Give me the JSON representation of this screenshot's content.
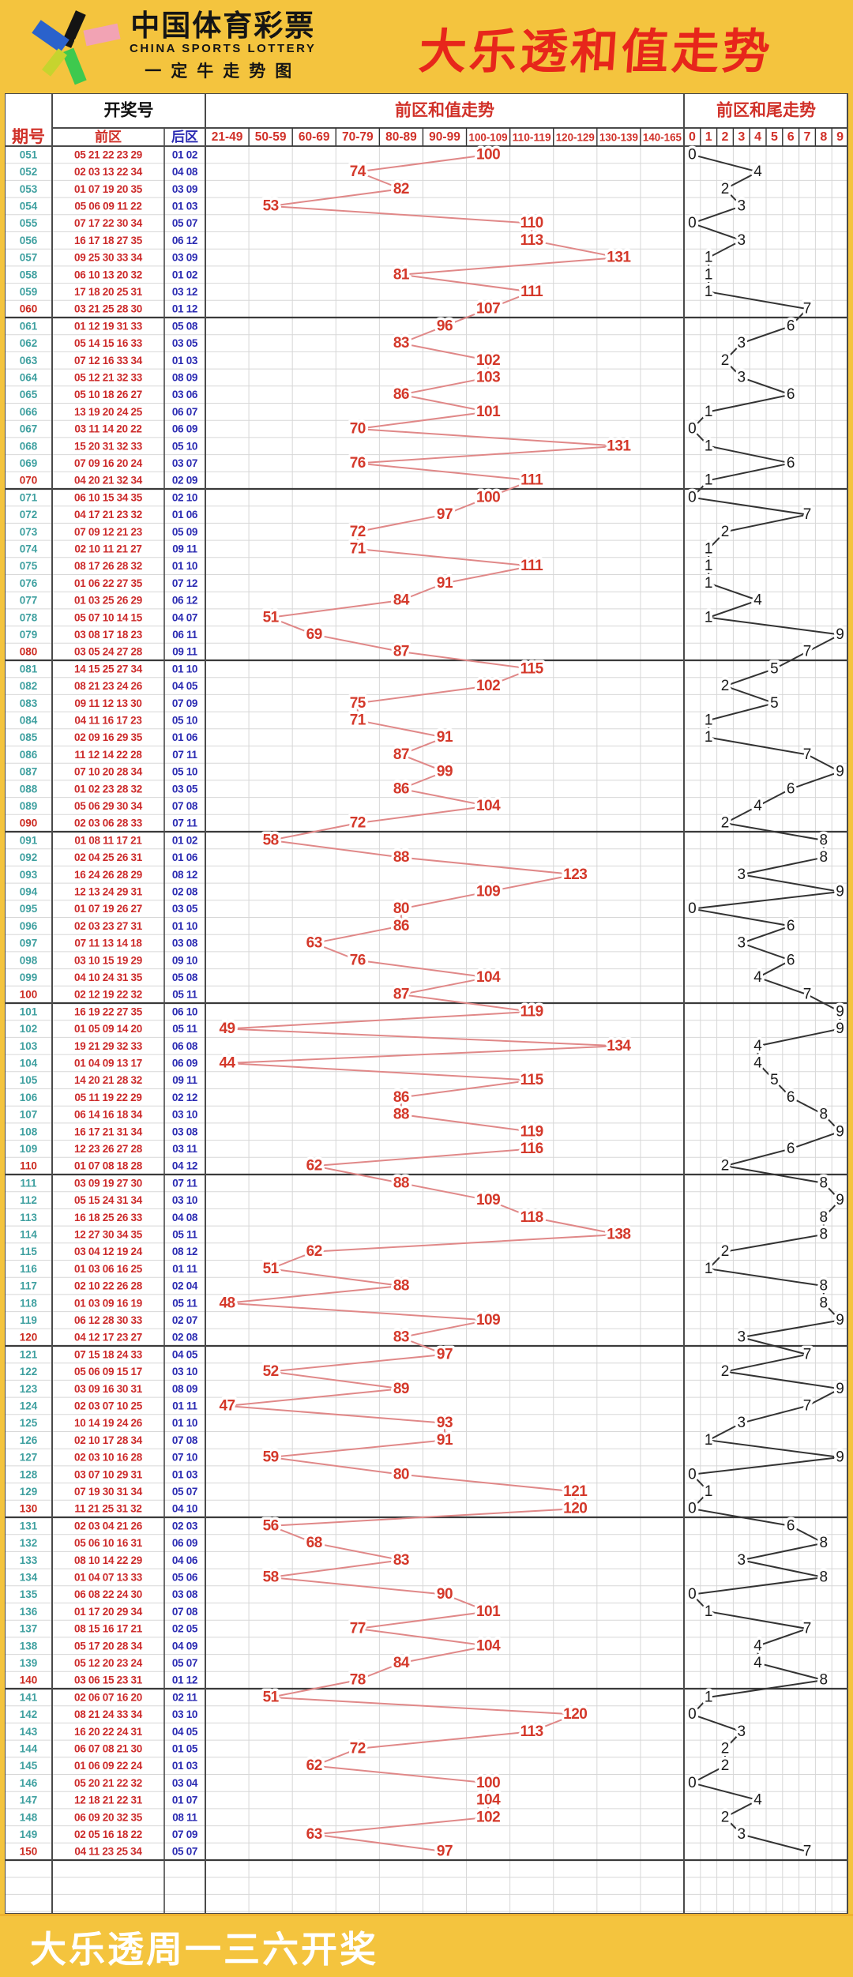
{
  "header": {
    "logo_title": "中国体育彩票",
    "logo_subtitle": "CHINA SPORTS LOTTERY",
    "logo_tagline": "一定牛走势图",
    "page_title": "大乐透和值走势"
  },
  "footer": {
    "text": "大乐透周一三六开奖"
  },
  "table_labels": {
    "period": "期号",
    "draw_number": "开奖号",
    "front_zone": "前区",
    "back_zone": "后区",
    "sum_trend": "前区和值走势",
    "tail_trend": "前区和尾走势"
  },
  "colors": {
    "page_yellow": "#f4c43e",
    "title_red": "#e7261b",
    "header_red": "#d03028",
    "period_teal": "#3fa0a0",
    "period_red": "#cc2a20",
    "front_red": "#cc2a2a",
    "back_blue": "#2a2ab2",
    "sum_text": "#d4382a",
    "sum_line": "#e08888",
    "tail_text": "#1b1b1b",
    "tail_line": "#333333",
    "grid_light": "#d7d7d7",
    "grid_dark": "#4a4a4a",
    "footer_text": "#ffffff"
  },
  "chart_data": {
    "type": "table",
    "description": "Lottery sum-value trend: each row plots front-zone sum into its range bin (red line) and sum tail digit 0-9 (black line)",
    "sum_bins": [
      "21-49",
      "50-59",
      "60-69",
      "70-79",
      "80-89",
      "90-99",
      "100-109",
      "110-119",
      "120-129",
      "130-139",
      "140-165"
    ],
    "tail_bins": [
      "0",
      "1",
      "2",
      "3",
      "4",
      "5",
      "6",
      "7",
      "8",
      "9"
    ],
    "row_format": [
      "period",
      "front",
      "back",
      "sum",
      "sum_tail"
    ],
    "rows": [
      [
        "051",
        "05 21 22 23 29",
        "01 02",
        100,
        0
      ],
      [
        "052",
        "02 03 13 22 34",
        "04 08",
        74,
        4
      ],
      [
        "053",
        "01 07 19 20 35",
        "03 09",
        82,
        2
      ],
      [
        "054",
        "05 06 09 11 22",
        "01 03",
        53,
        3
      ],
      [
        "055",
        "07 17 22 30 34",
        "05 07",
        110,
        0
      ],
      [
        "056",
        "16 17 18 27 35",
        "06 12",
        113,
        3
      ],
      [
        "057",
        "09 25 30 33 34",
        "03 09",
        131,
        1
      ],
      [
        "058",
        "06 10 13 20 32",
        "01 02",
        81,
        1
      ],
      [
        "059",
        "17 18 20 25 31",
        "03 12",
        111,
        1
      ],
      [
        "060",
        "03 21 25 28 30",
        "01 12",
        107,
        7
      ],
      [
        "061",
        "01 12 19 31 33",
        "05 08",
        96,
        6
      ],
      [
        "062",
        "05 14 15 16 33",
        "03 05",
        83,
        3
      ],
      [
        "063",
        "07 12 16 33 34",
        "01 03",
        102,
        2
      ],
      [
        "064",
        "05 12 21 32 33",
        "08 09",
        103,
        3
      ],
      [
        "065",
        "05 10 18 26 27",
        "03 06",
        86,
        6
      ],
      [
        "066",
        "13 19 20 24 25",
        "06 07",
        101,
        1
      ],
      [
        "067",
        "03 11 14 20 22",
        "06 09",
        70,
        0
      ],
      [
        "068",
        "15 20 31 32 33",
        "05 10",
        131,
        1
      ],
      [
        "069",
        "07 09 16 20 24",
        "03 07",
        76,
        6
      ],
      [
        "070",
        "04 20 21 32 34",
        "02 09",
        111,
        1
      ],
      [
        "071",
        "06 10 15 34 35",
        "02 10",
        100,
        0
      ],
      [
        "072",
        "04 17 21 23 32",
        "01 06",
        97,
        7
      ],
      [
        "073",
        "07 09 12 21 23",
        "05 09",
        72,
        2
      ],
      [
        "074",
        "02 10 11 21 27",
        "09 11",
        71,
        1
      ],
      [
        "075",
        "08 17 26 28 32",
        "01 10",
        111,
        1
      ],
      [
        "076",
        "01 06 22 27 35",
        "07 12",
        91,
        1
      ],
      [
        "077",
        "01 03 25 26 29",
        "06 12",
        84,
        4
      ],
      [
        "078",
        "05 07 10 14 15",
        "04 07",
        51,
        1
      ],
      [
        "079",
        "03 08 17 18 23",
        "06 11",
        69,
        9
      ],
      [
        "080",
        "03 05 24 27 28",
        "09 11",
        87,
        7
      ],
      [
        "081",
        "14 15 25 27 34",
        "01 10",
        115,
        5
      ],
      [
        "082",
        "08 21 23 24 26",
        "04 05",
        102,
        2
      ],
      [
        "083",
        "09 11 12 13 30",
        "07 09",
        75,
        5
      ],
      [
        "084",
        "04 11 16 17 23",
        "05 10",
        71,
        1
      ],
      [
        "085",
        "02 09 16 29 35",
        "01 06",
        91,
        1
      ],
      [
        "086",
        "11 12 14 22 28",
        "07 11",
        87,
        7
      ],
      [
        "087",
        "07 10 20 28 34",
        "05 10",
        99,
        9
      ],
      [
        "088",
        "01 02 23 28 32",
        "03 05",
        86,
        6
      ],
      [
        "089",
        "05 06 29 30 34",
        "07 08",
        104,
        4
      ],
      [
        "090",
        "02 03 06 28 33",
        "07 11",
        72,
        2
      ],
      [
        "091",
        "01 08 11 17 21",
        "01 02",
        58,
        8
      ],
      [
        "092",
        "02 04 25 26 31",
        "01 06",
        88,
        8
      ],
      [
        "093",
        "16 24 26 28 29",
        "08 12",
        123,
        3
      ],
      [
        "094",
        "12 13 24 29 31",
        "02 08",
        109,
        9
      ],
      [
        "095",
        "01 07 19 26 27",
        "03 05",
        80,
        0
      ],
      [
        "096",
        "02 03 23 27 31",
        "01 10",
        86,
        6
      ],
      [
        "097",
        "07 11 13 14 18",
        "03 08",
        63,
        3
      ],
      [
        "098",
        "03 10 15 19 29",
        "09 10",
        76,
        6
      ],
      [
        "099",
        "04 10 24 31 35",
        "05 08",
        104,
        4
      ],
      [
        "100",
        "02 12 19 22 32",
        "05 11",
        87,
        7
      ],
      [
        "101",
        "16 19 22 27 35",
        "06 10",
        119,
        9
      ],
      [
        "102",
        "01 05 09 14 20",
        "05 11",
        49,
        9
      ],
      [
        "103",
        "19 21 29 32 33",
        "06 08",
        134,
        4
      ],
      [
        "104",
        "01 04 09 13 17",
        "06 09",
        44,
        4
      ],
      [
        "105",
        "14 20 21 28 32",
        "09 11",
        115,
        5
      ],
      [
        "106",
        "05 11 19 22 29",
        "02 12",
        86,
        6
      ],
      [
        "107",
        "06 14 16 18 34",
        "03 10",
        88,
        8
      ],
      [
        "108",
        "16 17 21 31 34",
        "03 08",
        119,
        9
      ],
      [
        "109",
        "12 23 26 27 28",
        "03 11",
        116,
        6
      ],
      [
        "110",
        "01 07 08 18 28",
        "04 12",
        62,
        2
      ],
      [
        "111",
        "03 09 19 27 30",
        "07 11",
        88,
        8
      ],
      [
        "112",
        "05 15 24 31 34",
        "03 10",
        109,
        9
      ],
      [
        "113",
        "16 18 25 26 33",
        "04 08",
        118,
        8
      ],
      [
        "114",
        "12 27 30 34 35",
        "05 11",
        138,
        8
      ],
      [
        "115",
        "03 04 12 19 24",
        "08 12",
        62,
        2
      ],
      [
        "116",
        "01 03 06 16 25",
        "01 11",
        51,
        1
      ],
      [
        "117",
        "02 10 22 26 28",
        "02 04",
        88,
        8
      ],
      [
        "118",
        "01 03 09 16 19",
        "05 11",
        48,
        8
      ],
      [
        "119",
        "06 12 28 30 33",
        "02 07",
        109,
        9
      ],
      [
        "120",
        "04 12 17 23 27",
        "02 08",
        83,
        3
      ],
      [
        "121",
        "07 15 18 24 33",
        "04 05",
        97,
        7
      ],
      [
        "122",
        "05 06 09 15 17",
        "03 10",
        52,
        2
      ],
      [
        "123",
        "03 09 16 30 31",
        "08 09",
        89,
        9
      ],
      [
        "124",
        "02 03 07 10 25",
        "01 11",
        47,
        7
      ],
      [
        "125",
        "10 14 19 24 26",
        "01 10",
        93,
        3
      ],
      [
        "126",
        "02 10 17 28 34",
        "07 08",
        91,
        1
      ],
      [
        "127",
        "02 03 10 16 28",
        "07 10",
        59,
        9
      ],
      [
        "128",
        "03 07 10 29 31",
        "01 03",
        80,
        0
      ],
      [
        "129",
        "07 19 30 31 34",
        "05 07",
        121,
        1
      ],
      [
        "130",
        "11 21 25 31 32",
        "04 10",
        120,
        0
      ],
      [
        "131",
        "02 03 04 21 26",
        "02 03",
        56,
        6
      ],
      [
        "132",
        "05 06 10 16 31",
        "06 09",
        68,
        8
      ],
      [
        "133",
        "08 10 14 22 29",
        "04 06",
        83,
        3
      ],
      [
        "134",
        "01 04 07 13 33",
        "05 06",
        58,
        8
      ],
      [
        "135",
        "06 08 22 24 30",
        "03 08",
        90,
        0
      ],
      [
        "136",
        "01 17 20 29 34",
        "07 08",
        101,
        1
      ],
      [
        "137",
        "08 15 16 17 21",
        "02 05",
        77,
        7
      ],
      [
        "138",
        "05 17 20 28 34",
        "04 09",
        104,
        4
      ],
      [
        "139",
        "05 12 20 23 24",
        "05 07",
        84,
        4
      ],
      [
        "140",
        "03 06 15 23 31",
        "01 12",
        78,
        8
      ],
      [
        "141",
        "02 06 07 16 20",
        "02 11",
        51,
        1
      ],
      [
        "142",
        "08 21 24 33 34",
        "03 10",
        120,
        0
      ],
      [
        "143",
        "16 20 22 24 31",
        "04 05",
        113,
        3
      ],
      [
        "144",
        "06 07 08 21 30",
        "01 05",
        72,
        2
      ],
      [
        "145",
        "01 06 09 22 24",
        "01 03",
        62,
        2
      ],
      [
        "146",
        "05 20 21 22 32",
        "03 04",
        100,
        0
      ],
      [
        "147",
        "12 18 21 22 31",
        "01 07",
        104,
        4
      ],
      [
        "148",
        "06 09 20 32 35",
        "08 11",
        102,
        2
      ],
      [
        "149",
        "02 05 16 18 22",
        "07 09",
        63,
        3
      ],
      [
        "150",
        "04 11 23 25 34",
        "05 07",
        97,
        7
      ]
    ]
  }
}
